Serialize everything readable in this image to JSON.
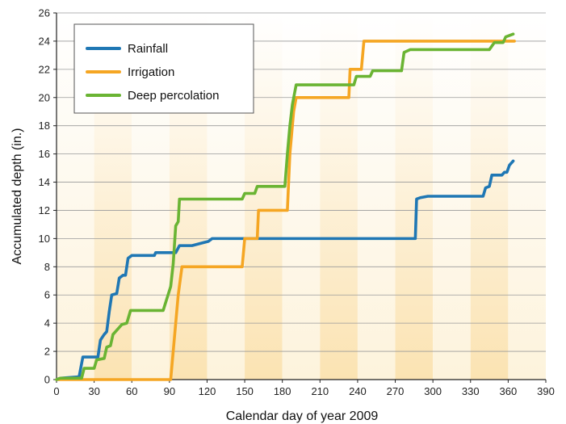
{
  "chart_data": {
    "type": "line",
    "title": "",
    "xlabel": "Calendar day of year 2009",
    "ylabel": "Accumulated depth (in.)",
    "xlim": [
      0,
      390
    ],
    "ylim": [
      0,
      26
    ],
    "xticks": [
      0,
      30,
      60,
      90,
      120,
      150,
      180,
      210,
      240,
      270,
      300,
      330,
      360,
      390
    ],
    "yticks": [
      0,
      2,
      4,
      6,
      8,
      10,
      12,
      14,
      16,
      18,
      20,
      22,
      24,
      26
    ],
    "grid": "horizontal",
    "legend": "top-left",
    "background_bands": {
      "light": "#fdf3dc",
      "dark": "#fbe3b2",
      "period": 30
    },
    "series": [
      {
        "name": "Rainfall",
        "color": "#1f77b4",
        "points": [
          [
            0,
            0
          ],
          [
            3,
            0.1
          ],
          [
            18,
            0.2
          ],
          [
            21,
            1.6
          ],
          [
            33,
            1.6
          ],
          [
            35,
            2.8
          ],
          [
            38,
            3.2
          ],
          [
            40,
            3.4
          ],
          [
            42,
            4.8
          ],
          [
            44,
            6
          ],
          [
            48,
            6.1
          ],
          [
            50,
            7.2
          ],
          [
            53,
            7.4
          ],
          [
            55,
            7.4
          ],
          [
            57,
            8.6
          ],
          [
            60,
            8.8
          ],
          [
            62,
            8.8
          ],
          [
            78,
            8.8
          ],
          [
            79,
            9
          ],
          [
            95,
            9
          ],
          [
            98,
            9.5
          ],
          [
            108,
            9.5
          ],
          [
            121,
            9.8
          ],
          [
            124,
            10
          ],
          [
            286,
            10
          ],
          [
            287,
            12.8
          ],
          [
            290,
            12.9
          ],
          [
            296,
            13
          ],
          [
            340,
            13
          ],
          [
            342,
            13.6
          ],
          [
            345,
            13.7
          ],
          [
            347,
            14.5
          ],
          [
            355,
            14.5
          ],
          [
            357,
            14.7
          ],
          [
            359,
            14.7
          ],
          [
            361,
            15.2
          ],
          [
            364,
            15.5
          ]
        ]
      },
      {
        "name": "Irrigation",
        "color": "#f5a623",
        "points": [
          [
            0,
            0
          ],
          [
            22,
            0
          ],
          [
            91,
            0
          ],
          [
            93,
            2
          ],
          [
            95,
            4
          ],
          [
            97,
            6
          ],
          [
            100,
            8
          ],
          [
            148,
            8
          ],
          [
            150,
            10
          ],
          [
            160,
            10
          ],
          [
            161,
            12
          ],
          [
            184,
            12
          ],
          [
            186,
            16
          ],
          [
            189,
            19
          ],
          [
            191,
            20
          ],
          [
            233,
            20
          ],
          [
            234,
            22
          ],
          [
            243,
            22
          ],
          [
            245,
            24
          ],
          [
            365,
            24
          ]
        ]
      },
      {
        "name": "Deep percolation",
        "color": "#6ab433",
        "points": [
          [
            0,
            0
          ],
          [
            3,
            0.1
          ],
          [
            20,
            0.1
          ],
          [
            22,
            0.8
          ],
          [
            30,
            0.8
          ],
          [
            32,
            1.4
          ],
          [
            38,
            1.5
          ],
          [
            40,
            2.3
          ],
          [
            43,
            2.4
          ],
          [
            45,
            3.2
          ],
          [
            49,
            3.6
          ],
          [
            52,
            3.9
          ],
          [
            56,
            4
          ],
          [
            59,
            4.9
          ],
          [
            85,
            4.9
          ],
          [
            91,
            6.6
          ],
          [
            93,
            8.2
          ],
          [
            95,
            10.9
          ],
          [
            97,
            11.2
          ],
          [
            98,
            12.8
          ],
          [
            148,
            12.8
          ],
          [
            150,
            13.2
          ],
          [
            158,
            13.2
          ],
          [
            160,
            13.7
          ],
          [
            182,
            13.7
          ],
          [
            184,
            16
          ],
          [
            186,
            18
          ],
          [
            188,
            19.5
          ],
          [
            191,
            20.9
          ],
          [
            237,
            20.9
          ],
          [
            239,
            21.5
          ],
          [
            250,
            21.5
          ],
          [
            252,
            21.9
          ],
          [
            275,
            21.9
          ],
          [
            277,
            23.2
          ],
          [
            282,
            23.4
          ],
          [
            345,
            23.4
          ],
          [
            349,
            23.9
          ],
          [
            356,
            23.9
          ],
          [
            358,
            24.3
          ],
          [
            361,
            24.4
          ],
          [
            364,
            24.5
          ]
        ]
      }
    ]
  }
}
